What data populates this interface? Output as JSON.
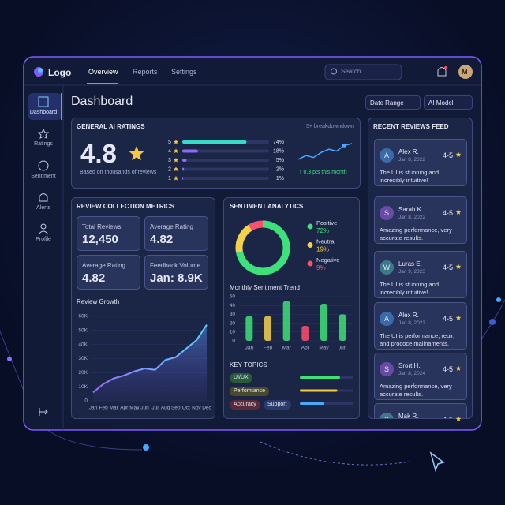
{
  "header": {
    "logo": "Logo",
    "nav": [
      "Overview",
      "Reports",
      "Settings"
    ],
    "search": "Search",
    "avatar": "M"
  },
  "sidebar": {
    "items": [
      "Dashboard",
      "Ratings",
      "Sentiment",
      "Alerts",
      "Profile"
    ]
  },
  "page": {
    "title": "Dashboard",
    "filters": [
      "Date Range",
      "AI Model"
    ]
  },
  "ratings": {
    "title": "GENERAL AI RATINGS",
    "score": "4.8",
    "note": "Based on thousands of reviews",
    "breakdown": "5+ breakdowndown",
    "stars": [
      5,
      4,
      3,
      2,
      1
    ],
    "percents": [
      74,
      18,
      5,
      2,
      1
    ],
    "percent_labels": [
      "74%",
      "18%",
      "5%",
      "2%",
      "1%"
    ],
    "trend_values": [
      2,
      2.6,
      2.3,
      3.1,
      3.6,
      3.3,
      4.2,
      4.5
    ],
    "trend": "↑ 0.3 pts this month"
  },
  "metrics": {
    "title": "REVIEW COLLECTION METRICS",
    "tiles": [
      {
        "label": "Total Reviews",
        "value": "12,450"
      },
      {
        "label": "Average Rating",
        "value": "4.82"
      },
      {
        "label": "Average Rating",
        "value": "4.82"
      },
      {
        "label": "Feedback Volume",
        "value": "Jan: 8.9K"
      }
    ],
    "growth": {
      "title": "Review Growth",
      "categories": [
        "Jan",
        "Feb",
        "Mar",
        "Apr",
        "May",
        "Jun",
        "Jul",
        "Aug",
        "Sep",
        "Oct",
        "Nov",
        "Dec"
      ],
      "values": [
        6000,
        12000,
        16000,
        18000,
        21000,
        23000,
        22000,
        29000,
        31000,
        37000,
        43000,
        54000
      ],
      "ylim": [
        0,
        60000
      ],
      "yticks": [
        0,
        {
          "value": 10000,
          "label": "10K"
        },
        {
          "value": 20000,
          "label": "20K"
        },
        {
          "value": 30000,
          "label": "30K"
        },
        {
          "value": 40000,
          "label": "40K"
        },
        {
          "value": 50000,
          "label": "50K"
        },
        {
          "value": 60000,
          "label": "60K"
        }
      ]
    }
  },
  "sentiment": {
    "title": "SENTIMENT ANALYTICS",
    "items": [
      {
        "name": "Positive",
        "value": 72,
        "label": "72%",
        "color": "#3ee07a"
      },
      {
        "name": "Neutral",
        "value": 19,
        "label": "19%",
        "color": "#f5d14a"
      },
      {
        "name": "Negative",
        "value": 9,
        "label": "9%",
        "color": "#ff4f6d"
      }
    ],
    "trend": {
      "title": "Monthly Sentiment Trend",
      "categories": [
        "Jan",
        "Feb",
        "Mar",
        "Apr",
        "May",
        "Jun"
      ],
      "values": [
        28,
        28,
        45,
        17,
        42,
        30
      ],
      "colors": [
        "#3ee07a",
        "#f5d14a",
        "#3ee07a",
        "#ff4f6d",
        "#3ee07a",
        "#3ee07a"
      ],
      "ylim": [
        0,
        50
      ],
      "yticks": [
        0,
        10,
        20,
        30,
        40,
        50
      ]
    },
    "topics": {
      "title": "KEY TOPICS",
      "tags": [
        "UI/UX",
        "Performance",
        "Accuracy",
        "Support"
      ],
      "scores": [
        75,
        70,
        45
      ]
    }
  },
  "reviews": {
    "title": "RECENT REVIEWS FEED",
    "items": [
      {
        "initial": "A",
        "name": "Alex R.",
        "date": "Jan 8, 2022",
        "rating": "4-5",
        "text": "The UI is stunning and incredibly intuitive!"
      },
      {
        "initial": "S",
        "name": "Sarah K.",
        "date": "Jan 8, 2022",
        "rating": "4-5",
        "text": "Amazing performance, very accurate results."
      },
      {
        "initial": "W",
        "name": "Luras E.",
        "date": "Jan 9, 2023",
        "rating": "4-5",
        "text": "The UI is stunning and incredibly intuitive!"
      },
      {
        "initial": "A",
        "name": "Alex R.",
        "date": "Jan 8, 2023",
        "rating": "4-5",
        "text": "The UI is performance, reuir, and prococe malinaments."
      },
      {
        "initial": "S",
        "name": "Srort H.",
        "date": "Jan 8, 2024",
        "rating": "4-5",
        "text": "Amazing performance, very accurate results."
      },
      {
        "initial": "S",
        "name": "Mak R.",
        "date": "Jan 9, 2023",
        "rating": "4-5"
      }
    ]
  }
}
